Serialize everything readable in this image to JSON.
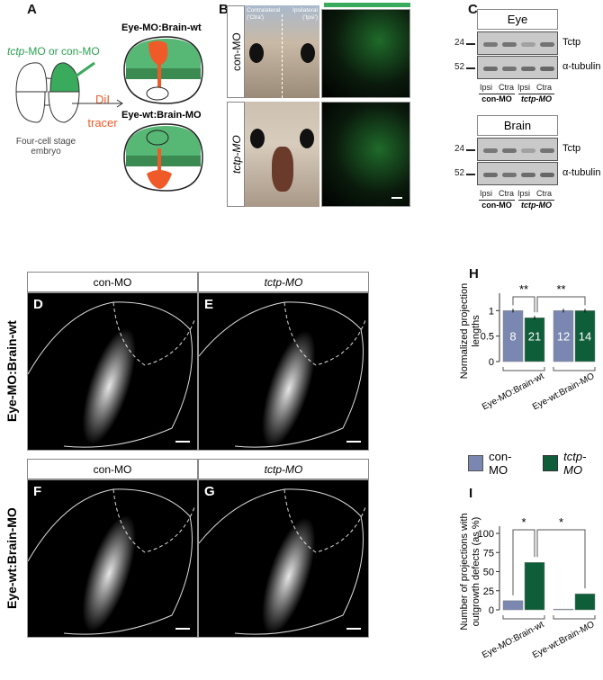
{
  "panels": {
    "A": {
      "label": "A",
      "injection": "tctp-MO or con-MO",
      "injection_italic": "tctp",
      "injection_rest": "-MO or con-MO",
      "tracer_line1": "DiI",
      "tracer_line2": "tracer",
      "embryo_line1": "Four-cell stage",
      "embryo_line2": "embryo",
      "condition1": "Eye-MO:Brain-wt",
      "condition2": "Eye-wt:Brain-MO"
    },
    "B": {
      "label": "B",
      "row1": "con-MO",
      "row2": "tctp-MO",
      "contralateral": "Contralateral",
      "contralateral_abbr": "('Ctra')",
      "ipsilateral": "Ipsilateral",
      "ipsilateral_abbr": "('Ipsi')"
    },
    "C": {
      "label": "C",
      "blots": [
        {
          "tissue": "Eye",
          "markers": [
            {
              "kda": "24",
              "protein": "Tctp"
            },
            {
              "kda": "52",
              "protein": "α-tubulin"
            }
          ]
        },
        {
          "tissue": "Brain",
          "markers": [
            {
              "kda": "24",
              "protein": "Tctp"
            },
            {
              "kda": "52",
              "protein": "α-tubulin"
            }
          ]
        }
      ],
      "lanes": [
        "Ipsi",
        "Ctra",
        "Ipsi",
        "Ctra"
      ],
      "groups": [
        "con-MO",
        "tctp-MO"
      ]
    },
    "micro": {
      "D": "D",
      "E": "E",
      "F": "F",
      "G": "G",
      "col1": "con-MO",
      "col2": "tctp-MO",
      "row1": "Eye-MO:Brain-wt",
      "row2": "Eye-wt:Brain-MO"
    },
    "H": {
      "label": "H"
    },
    "I": {
      "label": "I"
    }
  },
  "legend": {
    "items": [
      "con-MO",
      "tctp-MO"
    ]
  },
  "colors": {
    "con": "#7a87b0",
    "tctp": "#0f5e3a",
    "green": "#3aaa5c",
    "orange": "#f05a28"
  },
  "chart_data": [
    {
      "type": "bar",
      "panel": "H",
      "ylabel": "Normalized projection lengths",
      "categories": [
        "Eye-MO:Brain-wt",
        "Eye-wt:Brain-MO"
      ],
      "series": [
        {
          "name": "con-MO",
          "values": [
            1.0,
            1.0
          ],
          "n": [
            "8",
            "12"
          ]
        },
        {
          "name": "tctp-MO",
          "values": [
            0.86,
            1.0
          ],
          "n": [
            "21",
            "14"
          ]
        }
      ],
      "yticks": [
        "0",
        "0.5",
        "1"
      ],
      "ylim": [
        0,
        1.2
      ],
      "significance": [
        "**",
        "**"
      ]
    },
    {
      "type": "bar",
      "panel": "I",
      "ylabel": "Number of projections with outgrowth defects (as %)",
      "categories": [
        "Eye-MO:Brain-wt",
        "Eye-wt:Brain-MO"
      ],
      "series": [
        {
          "name": "con-MO",
          "values": [
            12,
            1
          ]
        },
        {
          "name": "tctp-MO",
          "values": [
            62,
            21
          ]
        }
      ],
      "yticks": [
        "0",
        "25",
        "50",
        "75",
        "100"
      ],
      "ylim": [
        0,
        100
      ],
      "significance": [
        "*",
        "*"
      ]
    }
  ]
}
